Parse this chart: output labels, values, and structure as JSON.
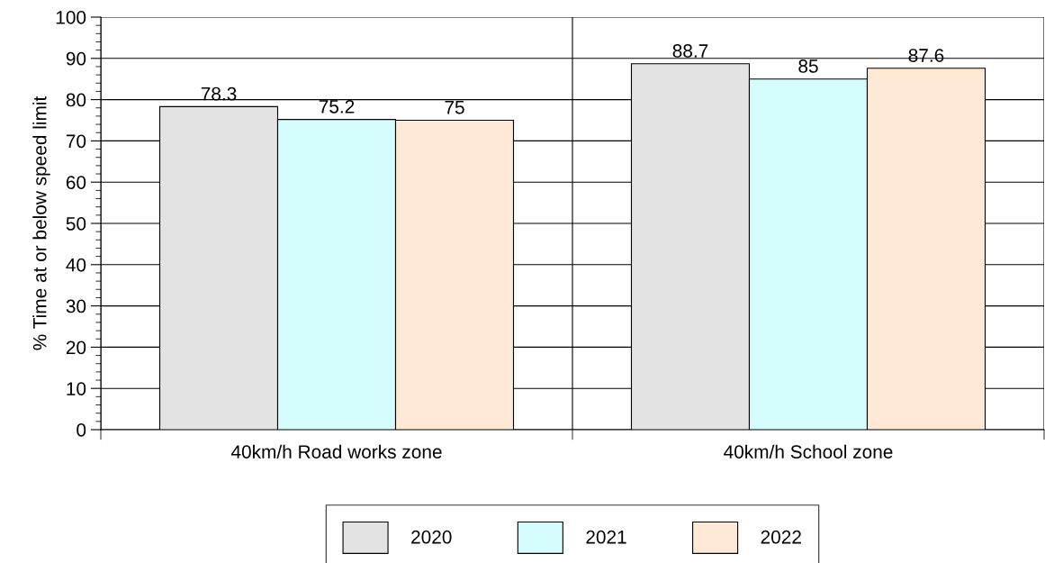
{
  "chart_data": {
    "type": "bar",
    "ylabel": "% Time at or below speed limit",
    "categories": [
      "40km/h Road works zone",
      "40km/h School zone"
    ],
    "series": [
      {
        "name": "2020",
        "color": "#e3e3e3",
        "values": [
          78.3,
          88.7
        ]
      },
      {
        "name": "2021",
        "color": "#d5fdfd",
        "values": [
          75.2,
          85
        ]
      },
      {
        "name": "2022",
        "color": "#fde9d5",
        "values": [
          75,
          87.6
        ]
      }
    ],
    "ylim": [
      0,
      100
    ],
    "yticks": [
      0,
      10,
      20,
      30,
      40,
      50,
      60,
      70,
      80,
      90,
      100
    ],
    "grid": true,
    "legend": "bottom",
    "data_labels": true
  }
}
